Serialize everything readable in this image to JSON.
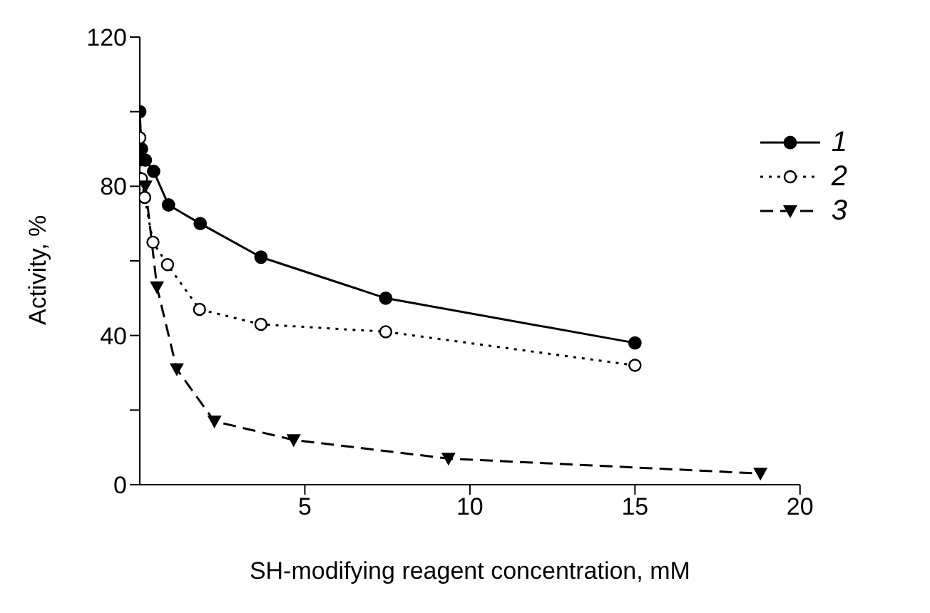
{
  "chart_data": {
    "type": "line",
    "xlabel": "SH-modifying reagent concentration, mM",
    "ylabel": "Activity, %",
    "xlim": [
      0,
      20
    ],
    "xticks": [
      5,
      10,
      15,
      20
    ],
    "ylim": [
      0,
      120
    ],
    "yticks": [
      0,
      {
        "value": 20,
        "label": null
      },
      40,
      {
        "value": 60,
        "label": null
      },
      80,
      {
        "value": 100,
        "label": null
      },
      120
    ],
    "grid": false,
    "legend": "top right",
    "series": [
      {
        "name": "1",
        "color": "#000000",
        "marker": "circle",
        "line_style": "solid",
        "x": [
          0,
          0.05,
          0.17,
          0.42,
          0.87,
          1.83,
          3.67,
          7.45,
          15
        ],
        "values": [
          100,
          90,
          87,
          84,
          75,
          70,
          61,
          50,
          38
        ]
      },
      {
        "name": "2",
        "color": "#000000",
        "marker": "circle_open",
        "line_style": "dotted",
        "x": [
          0,
          0.05,
          0.15,
          0.4,
          0.84,
          1.81,
          3.67,
          7.45,
          15
        ],
        "values": [
          93,
          82,
          77,
          65,
          59,
          47,
          43,
          41,
          32
        ]
      },
      {
        "name": "3",
        "color": "#000000",
        "marker": "triangle",
        "line_style": "dashed",
        "x": [
          0.17,
          0.52,
          1.12,
          2.26,
          4.66,
          9.35,
          18.8
        ],
        "values": [
          80,
          53,
          31,
          17,
          12,
          7,
          3
        ]
      }
    ]
  }
}
